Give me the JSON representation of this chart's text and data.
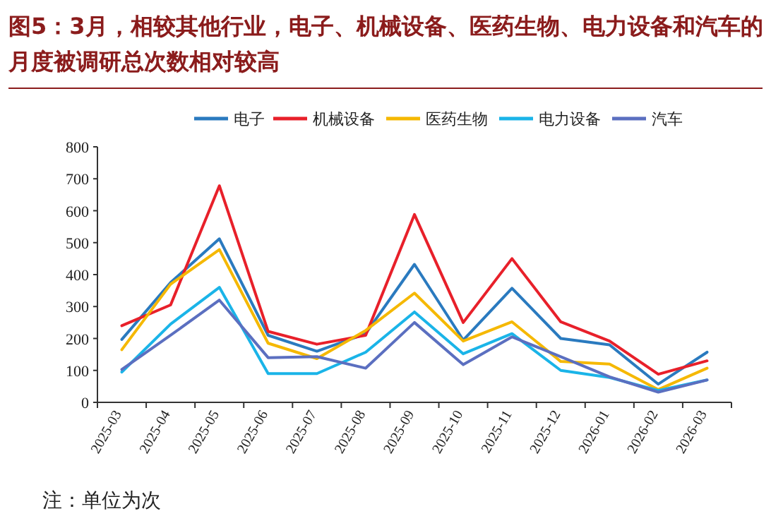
{
  "chart_data": {
    "type": "line",
    "title": "图5：3月，相较其他行业，电子、机械设备、医药生物、电力设备和汽车的月度被调研总次数相对较高",
    "categories": [
      "2025-03",
      "2025-04",
      "2025-05",
      "2025-06",
      "2025-07",
      "2025-08",
      "2025-09",
      "2025-10",
      "2025-11",
      "2025-12",
      "2026-01",
      "2026-02",
      "2026-03"
    ],
    "series": [
      {
        "name": "电子",
        "color": "#2a7abf",
        "values": [
          197,
          375,
          512,
          210,
          160,
          215,
          432,
          195,
          357,
          200,
          180,
          57,
          157
        ]
      },
      {
        "name": "机械设备",
        "color": "#e8202a",
        "values": [
          240,
          305,
          678,
          222,
          182,
          210,
          588,
          250,
          450,
          252,
          192,
          88,
          130
        ]
      },
      {
        "name": "医药生物",
        "color": "#f5b800",
        "values": [
          165,
          370,
          478,
          185,
          137,
          225,
          342,
          192,
          252,
          128,
          120,
          40,
          107
        ]
      },
      {
        "name": "电力设备",
        "color": "#1ab4e8",
        "values": [
          95,
          245,
          360,
          90,
          90,
          157,
          283,
          152,
          215,
          100,
          78,
          37,
          70
        ]
      },
      {
        "name": "汽车",
        "color": "#5b6fc0",
        "values": [
          103,
          210,
          320,
          140,
          143,
          107,
          250,
          118,
          205,
          143,
          80,
          32,
          70
        ]
      }
    ],
    "ylim": [
      0,
      800
    ],
    "yticks": [
      0,
      100,
      200,
      300,
      400,
      500,
      600,
      700,
      800
    ],
    "legend": "top",
    "grid": false,
    "marker": "none",
    "line_style": "solid",
    "annotations": [
      "注：单位为次"
    ]
  }
}
